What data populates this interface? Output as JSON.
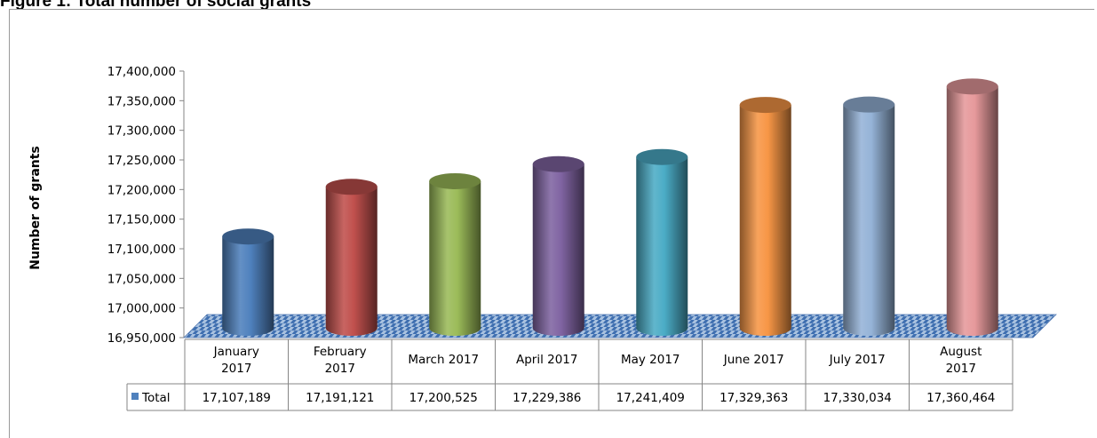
{
  "figure_title": "Figure 1: Total number of social grants",
  "chart_data": {
    "type": "bar",
    "style": "3d-cylinder",
    "title": "",
    "xlabel": "",
    "ylabel": "Number of grants",
    "ylim": [
      16950000,
      17400000
    ],
    "ytick_step": 50000,
    "yticks": [
      "16,950,000",
      "17,000,000",
      "17,050,000",
      "17,100,000",
      "17,150,000",
      "17,200,000",
      "17,250,000",
      "17,300,000",
      "17,350,000",
      "17,400,000"
    ],
    "categories": [
      [
        "January",
        "2017"
      ],
      [
        "February",
        "2017"
      ],
      [
        "March 2017"
      ],
      [
        "April 2017"
      ],
      [
        "May 2017"
      ],
      [
        "June 2017"
      ],
      [
        "July 2017"
      ],
      [
        "August",
        "2017"
      ]
    ],
    "series": [
      {
        "name": "Total",
        "values": [
          17107189,
          17191121,
          17200525,
          17229386,
          17241409,
          17329363,
          17330034,
          17360464
        ],
        "labels": [
          "17,107,189",
          "17,191,121",
          "17,200,525",
          "17,229,386",
          "17,241,409",
          "17,329,363",
          "17,330,034",
          "17,360,464"
        ],
        "colors": [
          "#4f81bd",
          "#c0504d",
          "#9bbb59",
          "#8064a2",
          "#4bacc6",
          "#f79646",
          "#95b3d7",
          "#e6999b"
        ]
      }
    ],
    "legend": "data-table",
    "data_table": true,
    "floor_pattern": "checkered blue"
  }
}
